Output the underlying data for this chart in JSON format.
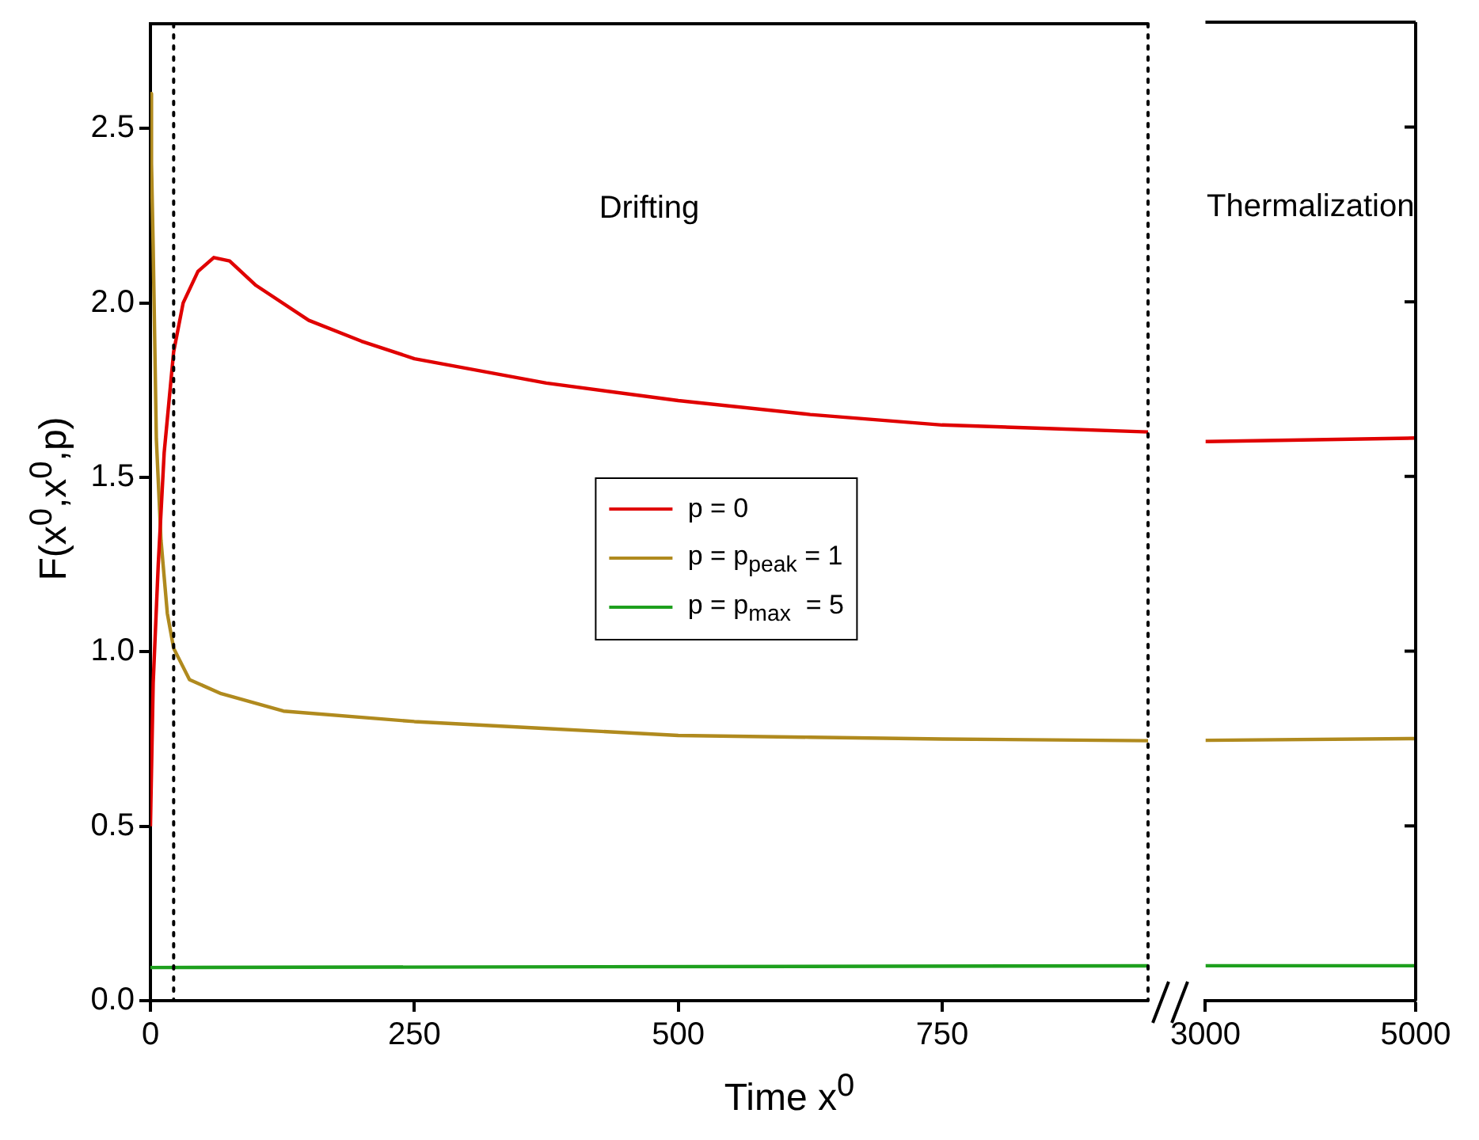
{
  "chart_data": [
    {
      "type": "line",
      "xlabel": "Time x$^{0}$",
      "ylabel": "F(x$^{0}$,x$^{0}$,p)",
      "xlim": [
        0,
        945
      ],
      "xticks": [
        0,
        250,
        500,
        750
      ],
      "ylim": [
        0,
        2.8
      ],
      "yticks": [
        {
          "value": 0,
          "label": "0.0"
        },
        0.5,
        {
          "value": 1,
          "label": "1.0"
        },
        1.5,
        {
          "value": 2,
          "label": "2.0"
        },
        2.5
      ],
      "legend": "center",
      "annotations": [
        "Drifting"
      ],
      "ref_lines": [
        {
          "axis": "x",
          "value": 22,
          "line_style": "dotted",
          "color": "#000000"
        },
        {
          "axis": "x",
          "value": 945,
          "line_style": "dotted",
          "color": "#000000"
        }
      ],
      "series": [
        {
          "name": "p = 0",
          "color": "#e00000",
          "x": [
            0,
            2.6,
            7.4,
            13,
            22,
            31,
            45,
            60,
            75,
            100,
            150,
            200,
            250,
            375,
            500,
            625,
            750,
            850,
            945
          ],
          "values": [
            0.5,
            0.91,
            1.25,
            1.57,
            1.86,
            2.0,
            2.09,
            2.13,
            2.12,
            2.05,
            1.95,
            1.89,
            1.84,
            1.77,
            1.72,
            1.68,
            1.65,
            1.64,
            1.63
          ]
        },
        {
          "name": "p = p$_{peak}$ = 1",
          "color": "#b08a1e",
          "x": [
            0,
            1,
            2.6,
            5.6,
            10,
            16,
            22,
            37,
            67,
            126,
            250,
            375,
            500,
            625,
            750,
            945
          ],
          "values": [
            2.6,
            2.4,
            2.16,
            1.61,
            1.32,
            1.11,
            1.01,
            0.92,
            0.88,
            0.83,
            0.8,
            0.78,
            0.76,
            0.755,
            0.75,
            0.745
          ]
        },
        {
          "name": "p = p$_{max}$  = 5",
          "color": "#1ea01e",
          "x": [
            0,
            945
          ],
          "values": [
            0.095,
            0.1
          ]
        }
      ]
    },
    {
      "type": "line",
      "xlim": [
        3000,
        5000
      ],
      "xticks": [
        3000,
        5000
      ],
      "ylim": [
        0,
        2.8
      ],
      "yticks": [
        0,
        0.5,
        1,
        1.5,
        2,
        2.5
      ],
      "tick_labels": "x",
      "annotations": [
        "Thermalization"
      ],
      "series": [
        {
          "color": "#e00000",
          "x": [
            3000,
            5000
          ],
          "values": [
            1.6,
            1.61
          ]
        },
        {
          "color": "#b08a1e",
          "x": [
            3000,
            5000
          ],
          "values": [
            0.745,
            0.75
          ]
        },
        {
          "color": "#1ea01e",
          "x": [
            3000,
            5000
          ],
          "values": [
            0.1,
            0.1
          ]
        }
      ]
    }
  ]
}
